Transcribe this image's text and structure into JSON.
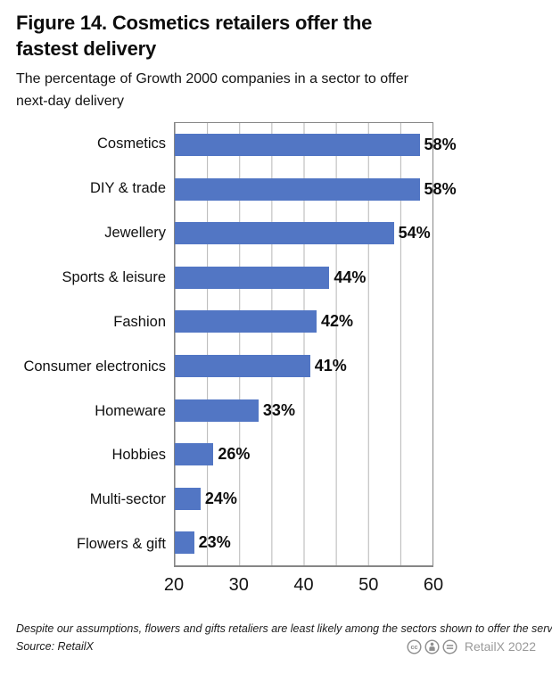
{
  "header": {
    "title_line1": "Figure 14. Cosmetics retailers offer the",
    "title_line2": "fastest delivery",
    "subtitle_line1": "The percentage of Growth 2000 companies in a sector to offer",
    "subtitle_line2": "next-day delivery"
  },
  "chart_data": {
    "type": "bar",
    "orientation": "horizontal",
    "title": "Figure 14. Cosmetics retailers offer the fastest delivery",
    "subtitle": "The percentage of Growth 2000 companies in a sector to offer next-day delivery",
    "categories": [
      "Cosmetics",
      "DIY & trade",
      "Jewellery",
      "Sports & leisure",
      "Fashion",
      "Consumer electronics",
      "Homeware",
      "Hobbies",
      "Multi-sector",
      "Flowers & gift"
    ],
    "values": [
      58,
      58,
      54,
      44,
      42,
      41,
      33,
      26,
      24,
      23
    ],
    "value_suffix": "%",
    "x_ticks": [
      20,
      30,
      40,
      50,
      60
    ],
    "xlim": [
      20,
      60
    ],
    "grid_interval": 5,
    "grid_on": true,
    "legend": "none",
    "bar_color": "#5276c4",
    "grid_color": "#b5b5b5",
    "border_color": "#868686"
  },
  "footer": {
    "note": "Despite our assumptions, flowers and gifts retaliers are least likely among the sectors shown to offer the service",
    "source": "Source: RetailX",
    "license_label": "RetailX 2022",
    "license_icon_color": "#8f8f8f"
  }
}
